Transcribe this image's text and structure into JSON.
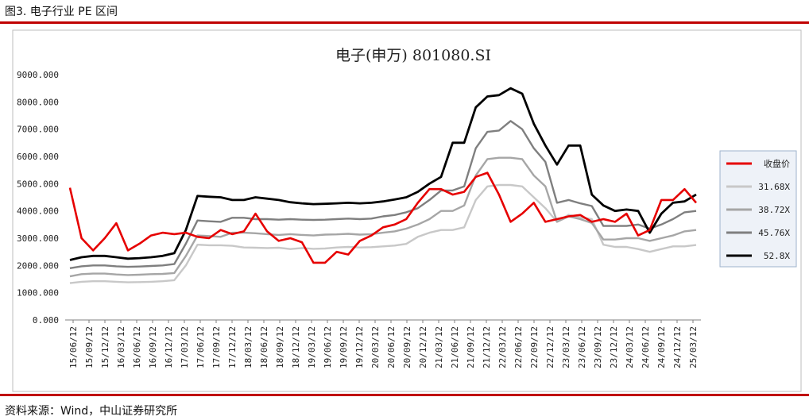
{
  "caption": "图3. 电子行业 PE 区间",
  "source": "资料来源：Wind，中山证券研究所",
  "colors": {
    "accent": "#c00000",
    "close": "#e60000",
    "b1": "#c8c8c8",
    "b2": "#a6a6a6",
    "b3": "#7f7f7f",
    "b4": "#000000"
  },
  "chart_data": {
    "type": "line",
    "title": "电子(申万) 801080.SI",
    "ylim": [
      0,
      9000
    ],
    "yticks": [
      "0.000",
      "1000.000",
      "2000.000",
      "3000.000",
      "4000.000",
      "5000.000",
      "6000.000",
      "7000.000",
      "8000.000",
      "9000.000"
    ],
    "x_ticks": [
      "15/06/12",
      "15/09/12",
      "15/12/12",
      "16/03/12",
      "16/06/12",
      "16/09/12",
      "16/12/12",
      "17/03/12",
      "17/06/12",
      "17/09/12",
      "17/12/12",
      "18/03/12",
      "18/06/12",
      "18/09/12",
      "18/12/12",
      "19/03/12",
      "19/06/12",
      "19/09/12",
      "19/12/12",
      "20/03/12",
      "20/06/12",
      "20/09/12",
      "20/12/12",
      "21/03/12",
      "21/06/12",
      "21/09/12",
      "21/12/12",
      "22/03/12",
      "22/06/12",
      "22/09/12",
      "22/12/12",
      "23/03/12",
      "23/06/12",
      "23/09/12",
      "23/12/12",
      "24/03/12",
      "24/06/12",
      "24/09/12",
      "24/12/12",
      "25/03/12"
    ],
    "legend_position": "right",
    "series": [
      {
        "name": "收盘价",
        "color": "#e60000",
        "values": [
          4850,
          3000,
          2550,
          3000,
          3550,
          2550,
          2800,
          3100,
          3200,
          3150,
          3200,
          3050,
          3000,
          3300,
          3150,
          3250,
          3900,
          3250,
          2900,
          3000,
          2850,
          2100,
          2100,
          2500,
          2400,
          2900,
          3100,
          3400,
          3500,
          3700,
          4300,
          4800,
          4800,
          4600,
          4700,
          5250,
          5400,
          4600,
          3600,
          3900,
          4300,
          3600,
          3700,
          3800,
          3850,
          3600,
          3700,
          3600,
          3900,
          3100,
          3300,
          4400,
          4400,
          4800,
          4300
        ]
      },
      {
        "name": "31.68X",
        "color": "#c8c8c8",
        "values": [
          1350,
          1400,
          1420,
          1420,
          1400,
          1380,
          1390,
          1400,
          1420,
          1460,
          2000,
          2760,
          2740,
          2740,
          2720,
          2660,
          2650,
          2640,
          2650,
          2600,
          2640,
          2610,
          2620,
          2660,
          2680,
          2660,
          2670,
          2700,
          2730,
          2790,
          3050,
          3200,
          3300,
          3300,
          3400,
          4400,
          4900,
          4950,
          4950,
          4900,
          4500,
          4100,
          3600,
          3860,
          3760,
          3700,
          2760,
          2680,
          2680,
          2600,
          2500,
          2600,
          2700,
          2700,
          2750
        ]
      },
      {
        "name": "38.72X",
        "color": "#a6a6a6",
        "values": [
          1600,
          1680,
          1700,
          1700,
          1670,
          1650,
          1660,
          1680,
          1690,
          1720,
          2350,
          3100,
          3080,
          3050,
          3200,
          3200,
          3180,
          3150,
          3120,
          3150,
          3120,
          3100,
          3130,
          3140,
          3160,
          3130,
          3150,
          3200,
          3250,
          3350,
          3500,
          3700,
          4000,
          4000,
          4200,
          5300,
          5900,
          5950,
          5950,
          5900,
          5300,
          4900,
          3600,
          3800,
          3700,
          3560,
          2950,
          2950,
          3000,
          3000,
          2900,
          3000,
          3100,
          3250,
          3300
        ]
      },
      {
        "name": "45.76X",
        "color": "#7f7f7f",
        "values": [
          1900,
          1970,
          2000,
          2000,
          1970,
          1950,
          1960,
          1980,
          2000,
          2050,
          2800,
          3650,
          3620,
          3600,
          3750,
          3750,
          3700,
          3700,
          3680,
          3700,
          3680,
          3670,
          3680,
          3700,
          3720,
          3700,
          3720,
          3800,
          3850,
          3950,
          4100,
          4400,
          4750,
          4750,
          4900,
          6300,
          6900,
          6950,
          7300,
          7000,
          6300,
          5800,
          4300,
          4400,
          4280,
          4180,
          3450,
          3450,
          3450,
          3500,
          3350,
          3500,
          3700,
          3950,
          4000
        ]
      },
      {
        "name": "52.8X",
        "color": "#000000",
        "values": [
          2200,
          2300,
          2350,
          2350,
          2300,
          2250,
          2270,
          2300,
          2350,
          2450,
          3300,
          4550,
          4520,
          4500,
          4400,
          4400,
          4500,
          4450,
          4400,
          4320,
          4280,
          4250,
          4260,
          4280,
          4300,
          4280,
          4300,
          4350,
          4420,
          4500,
          4700,
          5000,
          5250,
          6500,
          6500,
          7800,
          8200,
          8250,
          8500,
          8300,
          7200,
          6400,
          5700,
          6400,
          6400,
          4600,
          4200,
          4000,
          4050,
          4000,
          3200,
          3900,
          4300,
          4350,
          4600
        ]
      }
    ]
  }
}
